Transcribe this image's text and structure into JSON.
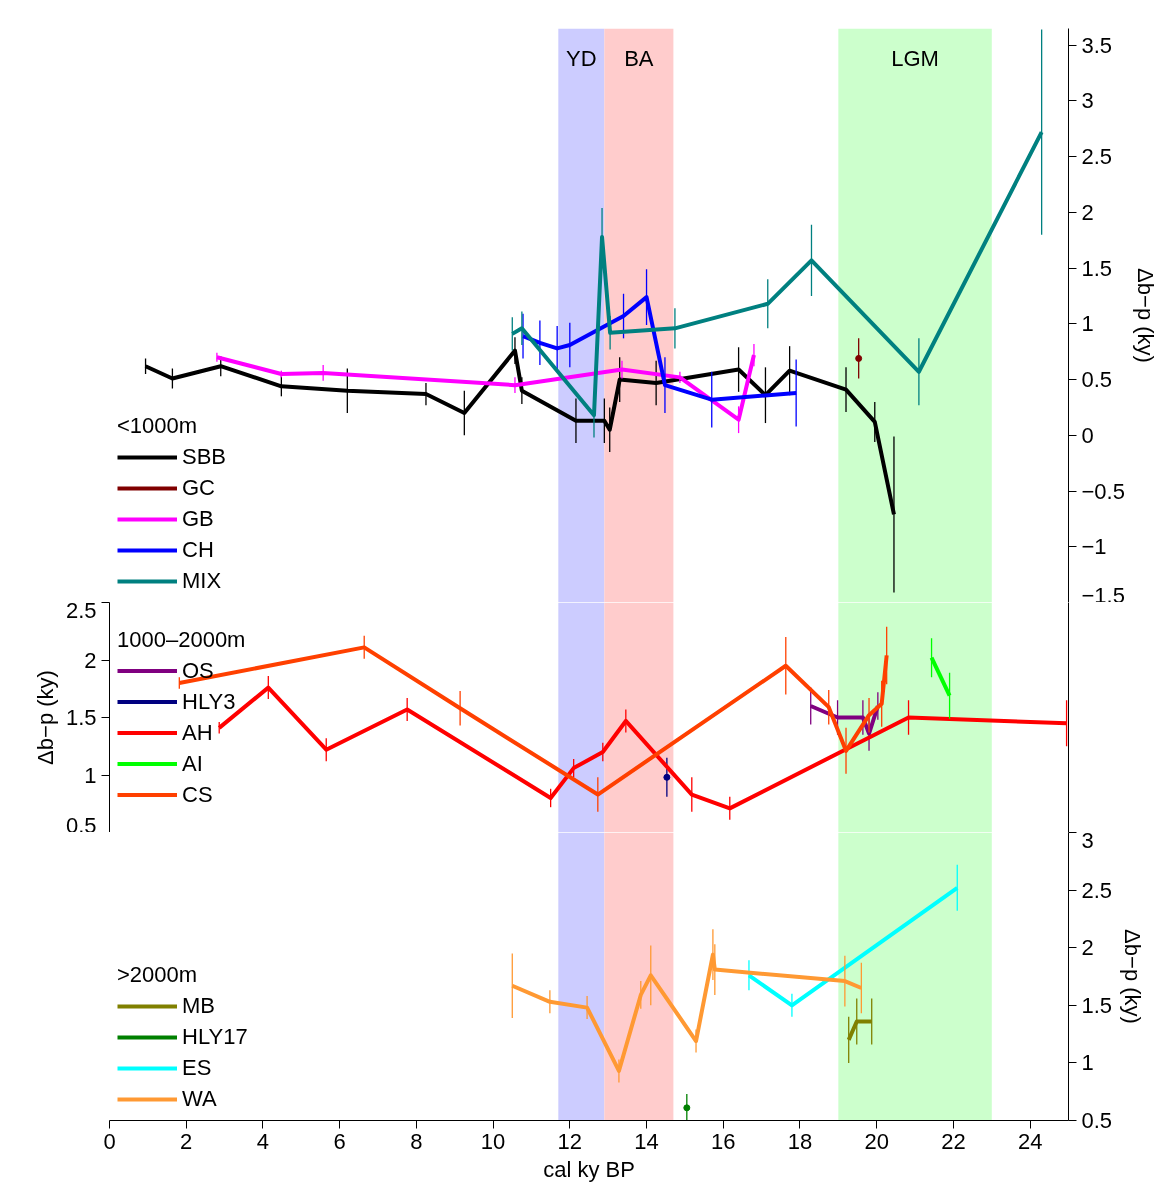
{
  "chart_data": [
    {
      "type": "line",
      "ylabel": "Δb−p (ky)",
      "legend_title": "<1000m",
      "legend": "bottom left",
      "grid": false,
      "tick_labels": "y",
      "xlim": [
        0,
        25
      ],
      "ylim": [
        -1.5,
        3.65
      ],
      "yticks": [
        {
          "value": -1.5,
          "label": "−1.5"
        },
        {
          "value": -1,
          "label": "−1"
        },
        {
          "value": -0.5,
          "label": "−0.5"
        },
        0,
        0.5,
        1,
        1.5,
        2,
        2.5,
        3,
        3.5
      ],
      "bands": [
        {
          "axis": "x",
          "from": 11.7,
          "to": 12.9,
          "label": "YD",
          "color": "#ccccff"
        },
        {
          "axis": "x",
          "from": 12.9,
          "to": 14.7,
          "label": "BA",
          "color": "#ffcccc"
        },
        {
          "axis": "x",
          "from": 19,
          "to": 23,
          "label": "LGM",
          "color": "#ccffcc"
        }
      ],
      "series": [
        {
          "name": "SBB",
          "color": "#000000",
          "x": [
            0.94,
            1.64,
            2.9,
            4.48,
            6.2,
            8.25,
            9.25,
            10.57,
            10.75,
            12.16,
            12.9,
            13.04,
            13.3,
            14.25,
            16.4,
            17.1,
            17.73,
            19.2,
            19.95,
            20.45
          ],
          "values": [
            0.62,
            0.51,
            0.62,
            0.44,
            0.4,
            0.37,
            0.2,
            0.76,
            0.4,
            0.13,
            0.13,
            0.05,
            0.5,
            0.47,
            0.59,
            0.36,
            0.58,
            0.41,
            0.12,
            -0.71
          ],
          "errors": [
            0.07,
            0.09,
            0.09,
            0.09,
            0.2,
            0.1,
            0.2,
            0.12,
            0.12,
            0.2,
            0.2,
            0.2,
            0.2,
            0.2,
            0.2,
            0.25,
            0.22,
            0.2,
            0.18,
            0.7
          ]
        },
        {
          "name": "GC",
          "color": "#800000",
          "marker": "circle",
          "x": [
            19.53
          ],
          "values": [
            0.69
          ],
          "errors": [
            0.18
          ]
        },
        {
          "name": "GB",
          "color": "#ff00ff",
          "x": [
            2.8,
            4.48,
            5.57,
            10.57,
            13.36,
            14.87,
            16.4,
            16.8
          ],
          "values": [
            0.7,
            0.55,
            0.56,
            0.45,
            0.59,
            0.52,
            0.14,
            0.72
          ],
          "errors": [
            0.04,
            0.03,
            0.07,
            0.07,
            0.08,
            0.05,
            0.12,
            0.1
          ]
        },
        {
          "name": "CH",
          "color": "#0000ff",
          "x": [
            10.78,
            11.22,
            11.67,
            12.0,
            13.4,
            14.0,
            14.48,
            15.7,
            17.9
          ],
          "values": [
            0.89,
            0.83,
            0.78,
            0.81,
            1.07,
            1.24,
            0.45,
            0.32,
            0.38
          ],
          "errors": [
            0.2,
            0.2,
            0.2,
            0.2,
            0.2,
            0.25,
            0.25,
            0.25,
            0.3
          ]
        },
        {
          "name": "MIX",
          "color": "#008080",
          "x": [
            10.5,
            10.75,
            12.63,
            12.84,
            13.05,
            14.74,
            17.16,
            18.3,
            21.1,
            24.3
          ],
          "values": [
            0.91,
            0.96,
            0.18,
            1.78,
            0.92,
            0.96,
            1.18,
            1.57,
            0.57,
            2.72
          ],
          "errors": [
            0.15,
            0.15,
            0.2,
            0.26,
            0.15,
            0.18,
            0.22,
            0.32,
            0.3,
            0.92
          ]
        }
      ]
    },
    {
      "type": "line",
      "ylabel": "Δb−p (ky)",
      "legend_title": "1000–2000m",
      "legend": "left",
      "grid": false,
      "tick_labels": "y",
      "xlim": [
        0,
        25
      ],
      "ylim": [
        0.5,
        2.5
      ],
      "yticks": [
        0.5,
        1,
        1.5,
        2,
        2.5
      ],
      "bands": [
        {
          "axis": "x",
          "from": 11.7,
          "to": 12.9,
          "label": null,
          "color": "#ccccff"
        },
        {
          "axis": "x",
          "from": 12.9,
          "to": 14.7,
          "label": null,
          "color": "#ffcccc"
        },
        {
          "axis": "x",
          "from": 19,
          "to": 23,
          "label": null,
          "color": "#ccffcc"
        }
      ],
      "series": [
        {
          "name": "OS",
          "color": "#800080",
          "x": [
            18.28,
            18.98,
            19.64,
            19.8,
            20.03
          ],
          "values": [
            1.6,
            1.5,
            1.5,
            1.36,
            1.6
          ],
          "errors": [
            0.16,
            0.15,
            0.15,
            0.15,
            0.12
          ]
        },
        {
          "name": "HLY3",
          "color": "#000080",
          "marker": "circle",
          "x": [
            14.53
          ],
          "values": [
            0.98
          ],
          "errors": [
            0.17
          ]
        },
        {
          "name": "AH",
          "color": "#ff0000",
          "x": [
            2.86,
            4.14,
            5.65,
            7.76,
            11.5,
            12.1,
            12.86,
            13.46,
            15.18,
            16.17,
            20.83,
            24.95
          ],
          "values": [
            1.41,
            1.76,
            1.22,
            1.57,
            0.8,
            1.06,
            1.2,
            1.47,
            0.83,
            0.71,
            1.5,
            1.45
          ],
          "errors": [
            0.05,
            0.1,
            0.1,
            0.1,
            0.08,
            0.08,
            0.08,
            0.1,
            0.15,
            0.1,
            0.15,
            0.2
          ]
        },
        {
          "name": "AI",
          "color": "#00ff00",
          "x": [
            21.43,
            21.9
          ],
          "values": [
            2.02,
            1.69
          ],
          "errors": [
            0.17,
            0.2
          ]
        },
        {
          "name": "CS",
          "color": "#ff4000",
          "x": [
            1.82,
            6.64,
            9.14,
            12.73,
            17.63,
            18.75,
            19.2,
            19.8,
            20.13,
            20.26
          ],
          "values": [
            1.8,
            2.11,
            1.58,
            0.83,
            1.95,
            1.59,
            1.21,
            1.52,
            1.62,
            2.04
          ],
          "errors": [
            0.05,
            0.1,
            0.15,
            0.15,
            0.25,
            0.15,
            0.2,
            0.15,
            0.2,
            0.25
          ]
        }
      ]
    },
    {
      "type": "line",
      "ylabel": "Δb−p (ky)",
      "xlabel": "cal ky BP",
      "legend_title": ">2000m",
      "legend": "bottom left",
      "grid": false,
      "xlim": [
        0,
        25
      ],
      "ylim": [
        0.5,
        3
      ],
      "xticks": [
        0,
        2,
        4,
        6,
        8,
        10,
        12,
        14,
        16,
        18,
        20,
        22,
        24
      ],
      "yticks": [
        0.5,
        1,
        1.5,
        2,
        2.5,
        3
      ],
      "bands": [
        {
          "axis": "x",
          "from": 11.7,
          "to": 12.9,
          "label": null,
          "color": "#ccccff"
        },
        {
          "axis": "x",
          "from": 12.9,
          "to": 14.7,
          "label": null,
          "color": "#ffcccc"
        },
        {
          "axis": "x",
          "from": 19,
          "to": 23,
          "label": null,
          "color": "#ccffcc"
        }
      ],
      "series": [
        {
          "name": "MB",
          "color": "#808000",
          "x": [
            19.27,
            19.48,
            19.87
          ],
          "values": [
            1.2,
            1.36,
            1.36
          ],
          "errors": [
            0.2,
            0.2,
            0.2
          ]
        },
        {
          "name": "HLY17",
          "color": "#008000",
          "marker": "circle",
          "x": [
            15.05
          ],
          "values": [
            0.61
          ],
          "errors": [
            0.12
          ]
        },
        {
          "name": "ES",
          "color": "#00ffff",
          "x": [
            16.67,
            17.79,
            22.1
          ],
          "values": [
            1.76,
            1.5,
            2.52
          ],
          "errors": [
            0.13,
            0.1,
            0.2
          ]
        },
        {
          "name": "WA",
          "color": "#ff9933",
          "x": [
            10.5,
            11.48,
            12.45,
            13.28,
            13.85,
            14.11,
            15.29,
            15.73,
            15.78,
            19.17,
            19.6
          ],
          "values": [
            1.67,
            1.53,
            1.48,
            0.93,
            1.59,
            1.76,
            1.19,
            1.94,
            1.81,
            1.71,
            1.65
          ],
          "errors": [
            0.28,
            0.1,
            0.1,
            0.1,
            0.12,
            0.26,
            0.1,
            0.22,
            0.22,
            0.22,
            0.22
          ]
        }
      ]
    }
  ]
}
